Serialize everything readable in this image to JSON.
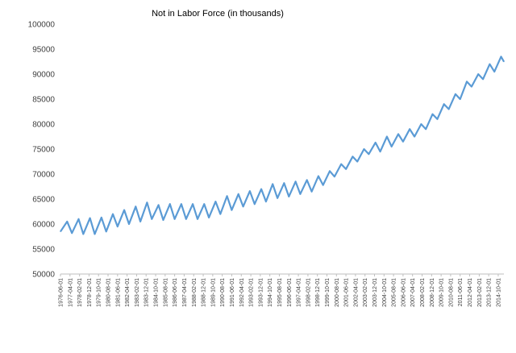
{
  "chart_data": {
    "type": "line",
    "title": "Not in Labor Force (in thousands)",
    "xlabel": "",
    "ylabel": "",
    "ylim": [
      50000,
      100000
    ],
    "yticks": [
      50000,
      55000,
      60000,
      65000,
      70000,
      75000,
      80000,
      85000,
      90000,
      95000,
      100000
    ],
    "x_range": [
      "1976-06-01",
      "2015-04-01"
    ],
    "x_tick_labels": [
      "1976-06-01",
      "1977-04-01",
      "1978-02-01",
      "1978-12-01",
      "1979-10-01",
      "1980-08-01",
      "1981-06-01",
      "1982-04-01",
      "1983-02-01",
      "1983-12-01",
      "1984-10-01",
      "1985-08-01",
      "1986-06-01",
      "1987-04-01",
      "1988-02-01",
      "1988-12-01",
      "1989-10-01",
      "1990-08-01",
      "1991-06-01",
      "1992-04-01",
      "1993-02-01",
      "1993-12-01",
      "1994-10-01",
      "1995-08-01",
      "1996-06-01",
      "1997-04-01",
      "1998-02-01",
      "1998-12-01",
      "1999-10-01",
      "2000-08-01",
      "2001-06-01",
      "2002-04-01",
      "2003-02-01",
      "2003-12-01",
      "2004-10-01",
      "2005-08-01",
      "2006-06-01",
      "2007-04-01",
      "2008-02-01",
      "2008-12-01",
      "2009-10-01",
      "2010-08-01",
      "2011-06-01",
      "2012-04-01",
      "2013-02-01",
      "2013-12-01",
      "2014-10-01"
    ],
    "grid": false,
    "legend": "none",
    "series": [
      {
        "color": "#5b9bd5",
        "x": [
          "1976-06-01",
          "1977-01-01",
          "1977-06-01",
          "1978-01-01",
          "1978-06-01",
          "1979-01-01",
          "1979-06-01",
          "1980-01-01",
          "1980-06-01",
          "1981-01-01",
          "1981-06-01",
          "1982-01-01",
          "1982-06-01",
          "1983-01-01",
          "1983-06-01",
          "1984-01-01",
          "1984-06-01",
          "1985-01-01",
          "1985-06-01",
          "1986-01-01",
          "1986-06-01",
          "1987-01-01",
          "1987-06-01",
          "1988-01-01",
          "1988-06-01",
          "1989-01-01",
          "1989-06-01",
          "1990-01-01",
          "1990-06-01",
          "1991-01-01",
          "1991-06-01",
          "1992-01-01",
          "1992-06-01",
          "1993-01-01",
          "1993-06-01",
          "1994-01-01",
          "1994-06-01",
          "1995-01-01",
          "1995-06-01",
          "1996-01-01",
          "1996-06-01",
          "1997-01-01",
          "1997-06-01",
          "1998-01-01",
          "1998-06-01",
          "1999-01-01",
          "1999-06-01",
          "2000-01-01",
          "2000-06-01",
          "2001-01-01",
          "2001-06-01",
          "2002-01-01",
          "2002-06-01",
          "2003-01-01",
          "2003-06-01",
          "2004-01-01",
          "2004-06-01",
          "2005-01-01",
          "2005-06-01",
          "2006-01-01",
          "2006-06-01",
          "2007-01-01",
          "2007-06-01",
          "2008-01-01",
          "2008-06-01",
          "2009-01-01",
          "2009-06-01",
          "2010-01-01",
          "2010-06-01",
          "2011-01-01",
          "2011-06-01",
          "2012-01-01",
          "2012-06-01",
          "2013-01-01",
          "2013-06-01",
          "2014-01-01",
          "2014-06-01",
          "2015-01-01",
          "2015-04-01"
        ],
        "y": [
          58500,
          60500,
          58200,
          61000,
          58000,
          61200,
          58000,
          61300,
          58500,
          62000,
          59500,
          62800,
          60000,
          63500,
          60500,
          64300,
          61000,
          63800,
          60800,
          64000,
          61000,
          64000,
          61000,
          64000,
          61000,
          64000,
          61300,
          64500,
          62000,
          65600,
          62800,
          66000,
          63500,
          66600,
          64000,
          67000,
          64500,
          68000,
          65200,
          68200,
          65500,
          68500,
          66000,
          68800,
          66500,
          69600,
          67800,
          70600,
          69500,
          72000,
          71000,
          73500,
          72500,
          75000,
          74000,
          76300,
          74500,
          77500,
          75500,
          78000,
          76500,
          79000,
          77500,
          80000,
          79000,
          82000,
          81000,
          84000,
          83000,
          86000,
          85000,
          88500,
          87500,
          90000,
          89000,
          92000,
          90500,
          93500,
          92500
        ]
      }
    ]
  }
}
